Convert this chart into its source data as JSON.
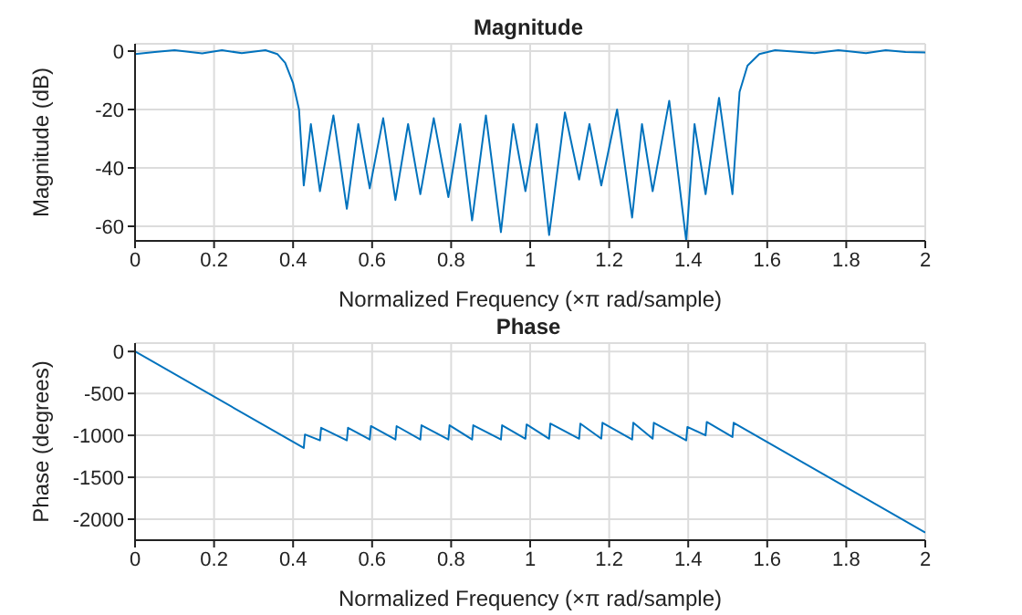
{
  "chart_data": [
    {
      "type": "line",
      "title": "Magnitude",
      "xlabel": "Normalized Frequency  (×π rad/sample)",
      "ylabel": "Magnitude (dB)",
      "xlim": [
        0,
        2
      ],
      "xticks": [
        0,
        0.2,
        0.4,
        0.6,
        0.8,
        1,
        1.2,
        1.4,
        1.6,
        1.8,
        2
      ],
      "ylim": [
        -65,
        2.5
      ],
      "yticks": [
        -60,
        -40,
        -20,
        0
      ],
      "grid": true,
      "marker": "none",
      "line_style": "solid",
      "x": [
        0,
        0.05,
        0.1,
        0.17,
        0.22,
        0.27,
        0.33,
        0.36,
        0.38,
        0.4,
        0.415,
        0.427,
        0.445,
        0.468,
        0.502,
        0.536,
        0.565,
        0.594,
        0.628,
        0.659,
        0.691,
        0.722,
        0.756,
        0.793,
        0.823,
        0.853,
        0.888,
        0.926,
        0.957,
        0.988,
        1.017,
        1.048,
        1.088,
        1.124,
        1.15,
        1.18,
        1.22,
        1.258,
        1.283,
        1.31,
        1.352,
        1.395,
        1.416,
        1.444,
        1.478,
        1.512,
        1.53,
        1.55,
        1.58,
        1.62,
        1.72,
        1.78,
        1.85,
        1.9,
        1.95,
        2
      ],
      "series": [
        {
          "color": "#0072bd",
          "values": [
            -1,
            -0.3,
            0.3,
            -0.8,
            0.3,
            -0.7,
            0.3,
            -1,
            -4,
            -11,
            -20,
            -46,
            -25,
            -48,
            -22,
            -54,
            -25,
            -47,
            -23,
            -51,
            -25,
            -49,
            -23,
            -50,
            -25,
            -58,
            -22,
            -62,
            -25,
            -48,
            -25,
            -63,
            -21,
            -44,
            -25,
            -46,
            -20,
            -57,
            -25,
            -48,
            -17,
            -65,
            -25,
            -49,
            -16,
            -49,
            -14,
            -5,
            -1,
            0.3,
            -0.7,
            0.3,
            -0.7,
            0.3,
            -0.3,
            -0.5
          ]
        }
      ]
    },
    {
      "type": "line",
      "title": "Phase",
      "xlabel": "Normalized Frequency  (×π rad/sample)",
      "ylabel": "Phase (degrees)",
      "xlim": [
        0,
        2
      ],
      "xticks": [
        0,
        0.2,
        0.4,
        0.6,
        0.8,
        1,
        1.2,
        1.4,
        1.6,
        1.8,
        2
      ],
      "ylim": [
        -2250,
        100
      ],
      "yticks": [
        -2000,
        -1500,
        -1000,
        -500,
        0
      ],
      "grid": true,
      "marker": "none",
      "line_style": "solid",
      "x": [
        0,
        0.427,
        0.43,
        0.468,
        0.471,
        0.536,
        0.539,
        0.594,
        0.597,
        0.659,
        0.662,
        0.722,
        0.725,
        0.793,
        0.796,
        0.853,
        0.856,
        0.926,
        0.929,
        0.988,
        0.991,
        1.048,
        1.051,
        1.124,
        1.127,
        1.18,
        1.183,
        1.258,
        1.261,
        1.31,
        1.313,
        1.395,
        1.398,
        1.444,
        1.447,
        1.512,
        1.515,
        2
      ],
      "series": [
        {
          "color": "#0072bd",
          "values": [
            0,
            -1150,
            -990,
            -1060,
            -910,
            -1060,
            -910,
            -1050,
            -890,
            -1050,
            -890,
            -1050,
            -880,
            -1050,
            -880,
            -1050,
            -880,
            -1050,
            -880,
            -1040,
            -870,
            -1040,
            -860,
            -1040,
            -860,
            -1040,
            -850,
            -1050,
            -850,
            -1040,
            -850,
            -1060,
            -900,
            -1000,
            -840,
            -1020,
            -850,
            -2160
          ]
        }
      ]
    }
  ]
}
